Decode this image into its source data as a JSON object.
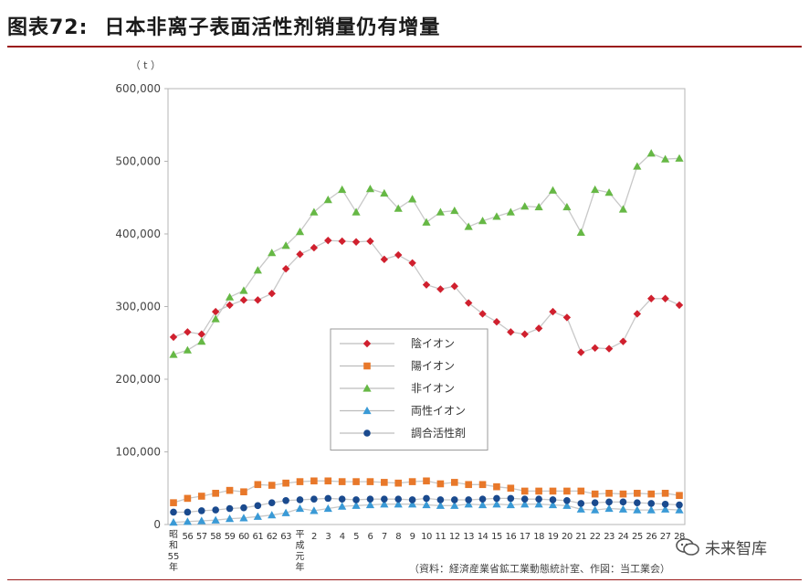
{
  "figure": {
    "number": "图表72:",
    "title": "日本非离子表面活性剂销量仍有增量",
    "source": "（資料：経済産業省鉱工業動態統計室、作図：当工業会）",
    "watermark": "未来智库"
  },
  "chart_data": {
    "type": "line",
    "yunit": "（ t ）",
    "ylim": [
      0,
      600000
    ],
    "yticks": [
      0,
      100000,
      200000,
      300000,
      400000,
      500000,
      600000
    ],
    "ytick_labels": [
      "0",
      "100,000",
      "200,000",
      "300,000",
      "400,000",
      "500,000",
      "600,000"
    ],
    "x_labels": [
      "昭和55年",
      "56",
      "57",
      "58",
      "59",
      "60",
      "61",
      "62",
      "63",
      "平成元年",
      "2",
      "3",
      "4",
      "5",
      "6",
      "7",
      "8",
      "9",
      "10",
      "11",
      "12",
      "13",
      "14",
      "15",
      "16",
      "17",
      "18",
      "19",
      "20",
      "21",
      "22",
      "23",
      "24",
      "25",
      "26",
      "27",
      "28"
    ],
    "legend_position": "center",
    "grid": false,
    "series": [
      {
        "name": "陰イオン",
        "marker": "diamond",
        "color": "#d0202e",
        "line_color": "#c8c8c8",
        "values": [
          258000,
          265000,
          262000,
          293000,
          302000,
          309000,
          309000,
          318000,
          352000,
          372000,
          381000,
          391000,
          390000,
          389000,
          390000,
          365000,
          371000,
          360000,
          330000,
          324000,
          328000,
          305000,
          290000,
          279000,
          265000,
          262000,
          270000,
          293000,
          285000,
          237000,
          243000,
          242000,
          252000,
          290000,
          311000,
          311000,
          302000
        ]
      },
      {
        "name": "陽イオン",
        "marker": "square",
        "color": "#e8782a",
        "line_color": "#c8c8c8",
        "values": [
          30000,
          36000,
          39000,
          43000,
          47000,
          45000,
          55000,
          54000,
          57000,
          59000,
          60000,
          60000,
          59000,
          59000,
          59000,
          58000,
          57000,
          59000,
          60000,
          56000,
          58000,
          55000,
          55000,
          52000,
          50000,
          46000,
          46000,
          46000,
          46000,
          46000,
          42000,
          43000,
          42000,
          43000,
          42000,
          43000,
          40000
        ]
      },
      {
        "name": "非イオン",
        "marker": "triangle",
        "color": "#66b845",
        "line_color": "#c8c8c8",
        "values": [
          234000,
          240000,
          252000,
          283000,
          313000,
          322000,
          350000,
          374000,
          384000,
          403000,
          430000,
          447000,
          461000,
          430000,
          462000,
          456000,
          435000,
          448000,
          416000,
          430000,
          432000,
          410000,
          418000,
          424000,
          430000,
          438000,
          437000,
          460000,
          437000,
          402000,
          461000,
          457000,
          434000,
          493000,
          511000,
          503000,
          504000
        ]
      },
      {
        "name": "両性イオン",
        "marker": "triangle",
        "color": "#3a9ad6",
        "line_color": "#c8c8c8",
        "values": [
          3000,
          4000,
          5000,
          6000,
          8000,
          9000,
          11000,
          13000,
          16000,
          22000,
          19000,
          22000,
          25000,
          26000,
          27000,
          28000,
          28000,
          28000,
          27000,
          26000,
          26000,
          28000,
          27000,
          28000,
          27000,
          28000,
          28000,
          27000,
          26000,
          21000,
          20000,
          22000,
          21000,
          20000,
          20000,
          21000,
          20000
        ]
      },
      {
        "name": "調合活性剤",
        "marker": "circle",
        "color": "#1a4a8e",
        "line_color": "#c8c8c8",
        "values": [
          17000,
          17000,
          19000,
          20000,
          22000,
          23000,
          26000,
          30000,
          33000,
          34000,
          35000,
          36000,
          35000,
          34000,
          35000,
          35000,
          35000,
          34000,
          36000,
          34000,
          34000,
          34000,
          35000,
          36000,
          36000,
          35000,
          35000,
          34000,
          33000,
          29000,
          30000,
          31000,
          31000,
          30000,
          29000,
          28000,
          27000
        ]
      }
    ]
  }
}
